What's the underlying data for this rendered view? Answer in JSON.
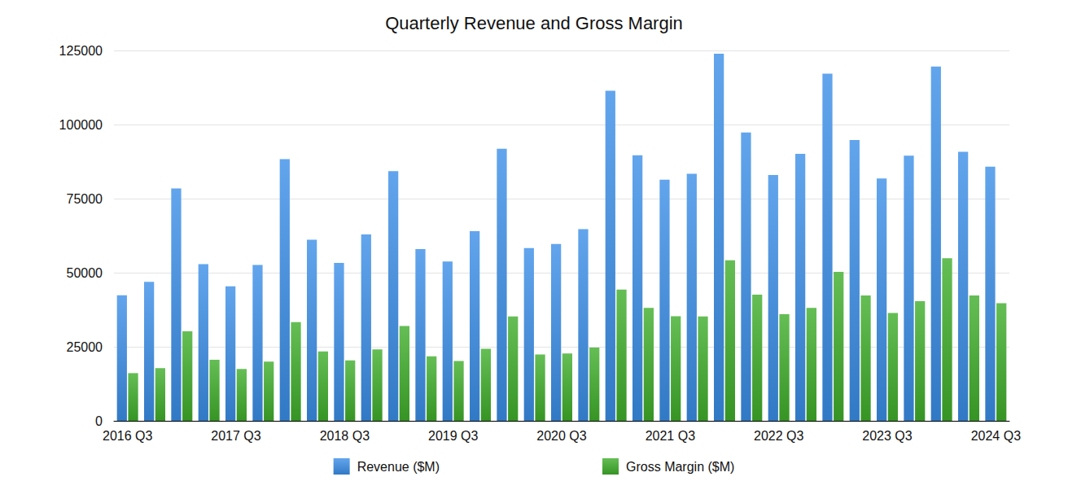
{
  "chart_data": {
    "type": "bar",
    "title": "Quarterly Revenue and Gross Margin",
    "categories": [
      "2016 Q3",
      null,
      null,
      null,
      "2017 Q3",
      null,
      null,
      null,
      "2018 Q3",
      null,
      null,
      null,
      "2019 Q3",
      null,
      null,
      null,
      "2020 Q3",
      null,
      null,
      null,
      "2021 Q3",
      null,
      null,
      null,
      "2022 Q3",
      null,
      null,
      null,
      "2023 Q3",
      null,
      null,
      null,
      "2024 Q3"
    ],
    "series": [
      {
        "name": "Revenue ($M)",
        "color": "#3b8ee8",
        "values": [
          42400,
          46900,
          78400,
          52900,
          45400,
          52600,
          88300,
          61100,
          53300,
          62900,
          84300,
          58000,
          53800,
          64000,
          91800,
          58300,
          59700,
          64700,
          111400,
          89600,
          81400,
          83400,
          123900,
          97300,
          83000,
          90100,
          117200,
          94800,
          81800,
          89500,
          119600,
          90800,
          85800
        ]
      },
      {
        "name": "Gross Margin ($M)",
        "color": "#3fae2a",
        "values": [
          16100,
          17800,
          30200,
          20600,
          17500,
          20000,
          33300,
          23400,
          20400,
          24100,
          32000,
          21800,
          20200,
          24300,
          35200,
          22400,
          22700,
          24700,
          44300,
          38100,
          35300,
          35200,
          54200,
          42600,
          36000,
          38100,
          50300,
          42300,
          36400,
          40400,
          54900,
          42300,
          39700
        ]
      }
    ],
    "ylim": [
      0,
      125000
    ],
    "yticks": [
      0,
      25000,
      50000,
      75000,
      100000,
      125000
    ],
    "grid": true,
    "legend": "bottom"
  }
}
